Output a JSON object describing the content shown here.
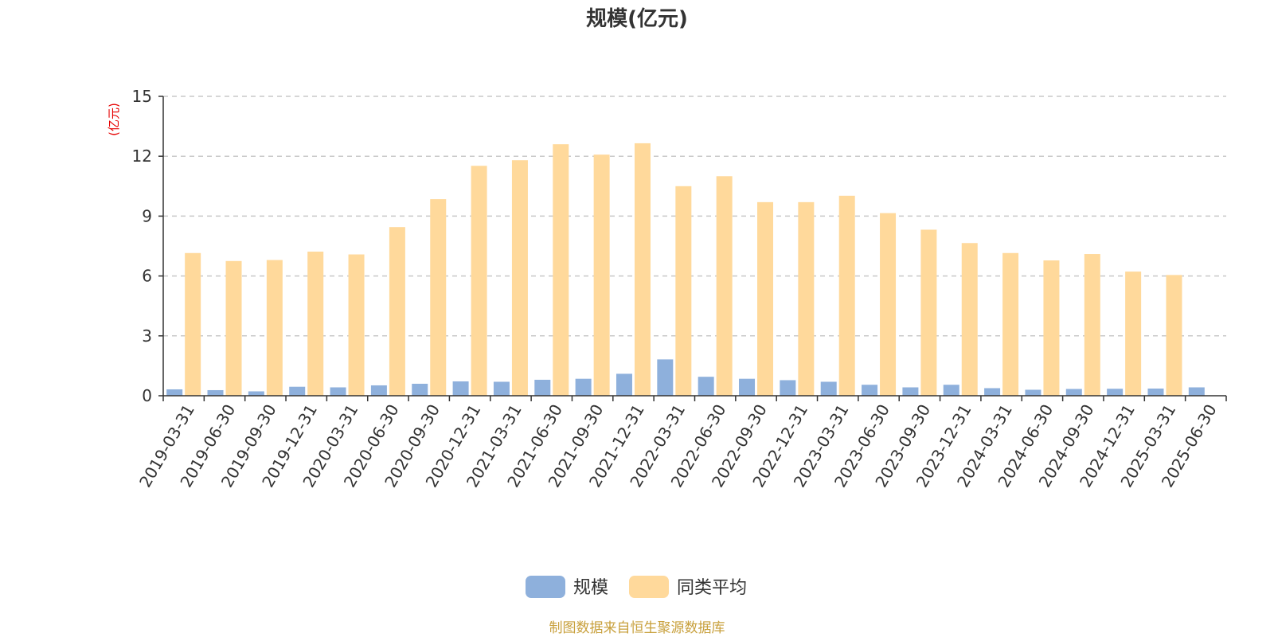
{
  "chart_data": {
    "type": "bar",
    "title": "规模(亿元)",
    "ylabel": "(亿元)",
    "ylim": [
      0,
      15
    ],
    "yticks": [
      0,
      3,
      6,
      9,
      12,
      15
    ],
    "grid": true,
    "legend_position": "bottom-center",
    "categories": [
      "2019-03-31",
      "2019-06-30",
      "2019-09-30",
      "2019-12-31",
      "2020-03-31",
      "2020-06-30",
      "2020-09-30",
      "2020-12-31",
      "2021-03-31",
      "2021-06-30",
      "2021-09-30",
      "2021-12-31",
      "2022-03-31",
      "2022-06-30",
      "2022-09-30",
      "2022-12-31",
      "2023-03-31",
      "2023-06-30",
      "2023-09-30",
      "2023-12-31",
      "2024-03-31",
      "2024-06-30",
      "2024-09-30",
      "2024-12-31",
      "2025-03-31",
      "2025-06-30"
    ],
    "series": [
      {
        "name": "规模",
        "color": "#8eb0dc",
        "values": [
          0.32,
          0.28,
          0.22,
          0.45,
          0.42,
          0.52,
          0.6,
          0.72,
          0.7,
          0.8,
          0.85,
          1.1,
          1.82,
          0.95,
          0.85,
          0.78,
          0.7,
          0.55,
          0.42,
          0.55,
          0.38,
          0.3,
          0.34,
          0.35,
          0.36,
          0.42
        ]
      },
      {
        "name": "同类平均",
        "color": "#ffd99b",
        "values": [
          7.15,
          6.75,
          6.8,
          7.22,
          7.08,
          8.45,
          9.85,
          11.52,
          11.8,
          12.6,
          12.08,
          12.65,
          10.5,
          11.0,
          9.7,
          9.7,
          10.02,
          9.15,
          8.32,
          7.65,
          7.15,
          6.78,
          7.1,
          6.22,
          6.05,
          null
        ]
      }
    ]
  },
  "source_note": "制图数据来自恒生聚源数据库"
}
